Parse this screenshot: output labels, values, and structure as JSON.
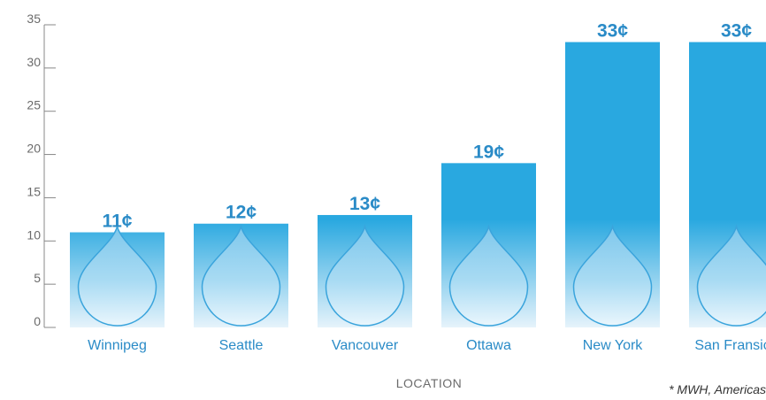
{
  "chart_data": {
    "type": "bar",
    "categories": [
      "Winnipeg",
      "Seattle",
      "Vancouver",
      "Ottawa",
      "New York",
      "San Fransico"
    ],
    "values": [
      11,
      12,
      13,
      19,
      33,
      33
    ],
    "value_labels": [
      "11¢",
      "12¢",
      "13¢",
      "19¢",
      "33¢",
      "33¢"
    ],
    "xlabel": "LOCATION",
    "ylabel": "",
    "ylim": [
      0,
      35
    ],
    "yticks": [
      0,
      5,
      10,
      15,
      20,
      25,
      30,
      35
    ],
    "grid": false,
    "legend": "none",
    "bar_marker": "water-drop-icon"
  },
  "footnote": "* MWH, Americas",
  "colors": {
    "bar_top": "#29a8e0",
    "bar_bottom": "#e6f3fb",
    "drop_outline": "#3aa4dc",
    "label": "#2a8bc7",
    "axis": "#888888"
  }
}
